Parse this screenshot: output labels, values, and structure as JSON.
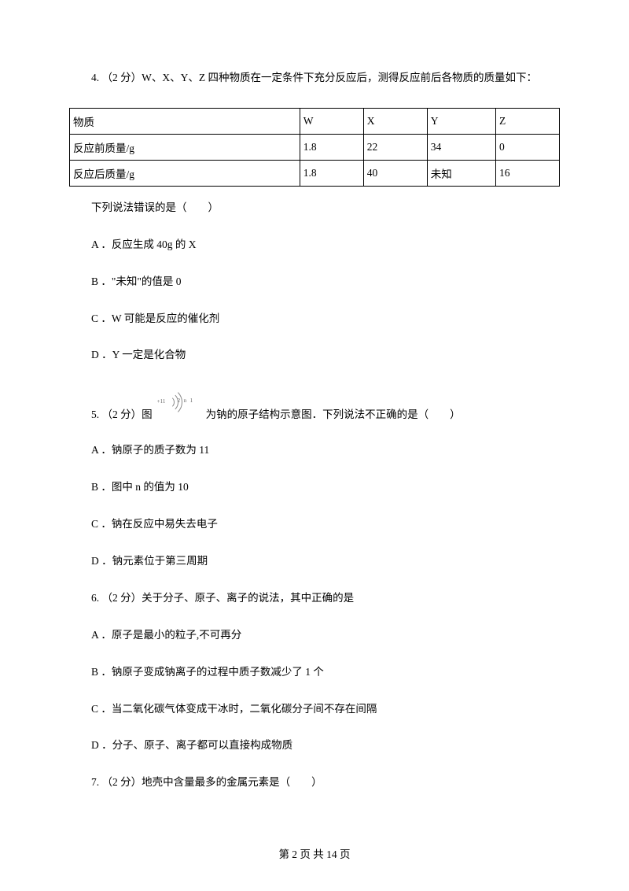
{
  "q4": {
    "stem": "4. （2 分）W、X、Y、Z 四种物质在一定条件下充分反应后，测得反应前后各物质的质量如下：",
    "table": {
      "headers": [
        "物质",
        "W",
        "X",
        "Y",
        "Z"
      ],
      "row1": [
        "反应前质量/g",
        "1.8",
        "22",
        "34",
        "0"
      ],
      "row2": [
        "反应后质量/g",
        "1.8",
        "40",
        "未知",
        "16"
      ]
    },
    "after_table": "下列说法错误的是（　　）",
    "A": "A ．反应生成 40g 的 X",
    "B": "B ．\"未知\"的值是 0",
    "C": "C ．W 可能是反应的催化剂",
    "D": "D ．Y 一定是化合物"
  },
  "q5": {
    "pre": "5. （2 分）图",
    "post": "为钠的原子结构示意图．下列说法不正确的是（　　）",
    "atom": {
      "center": "+11",
      "s1": "2",
      "s2": "n",
      "s3": "1"
    },
    "A": "A ．钠原子的质子数为 11",
    "B": "B ．图中 n 的值为 10",
    "C": "C ．钠在反应中易失去电子",
    "D": "D ．钠元素位于第三周期"
  },
  "q6": {
    "stem": "6. （2 分）关于分子、原子、离子的说法，其中正确的是",
    "A": "A ．原子是最小的粒子,不可再分",
    "B": "B ．钠原子变成钠离子的过程中质子数减少了 1 个",
    "C": "C ．当二氧化碳气体变成干冰时，二氧化碳分子间不存在间隔",
    "D": "D ．分子、原子、离子都可以直接构成物质"
  },
  "q7": {
    "stem": "7. （2 分）地壳中含量最多的金属元素是（　　）"
  },
  "footer": "第 2 页 共 14 页"
}
